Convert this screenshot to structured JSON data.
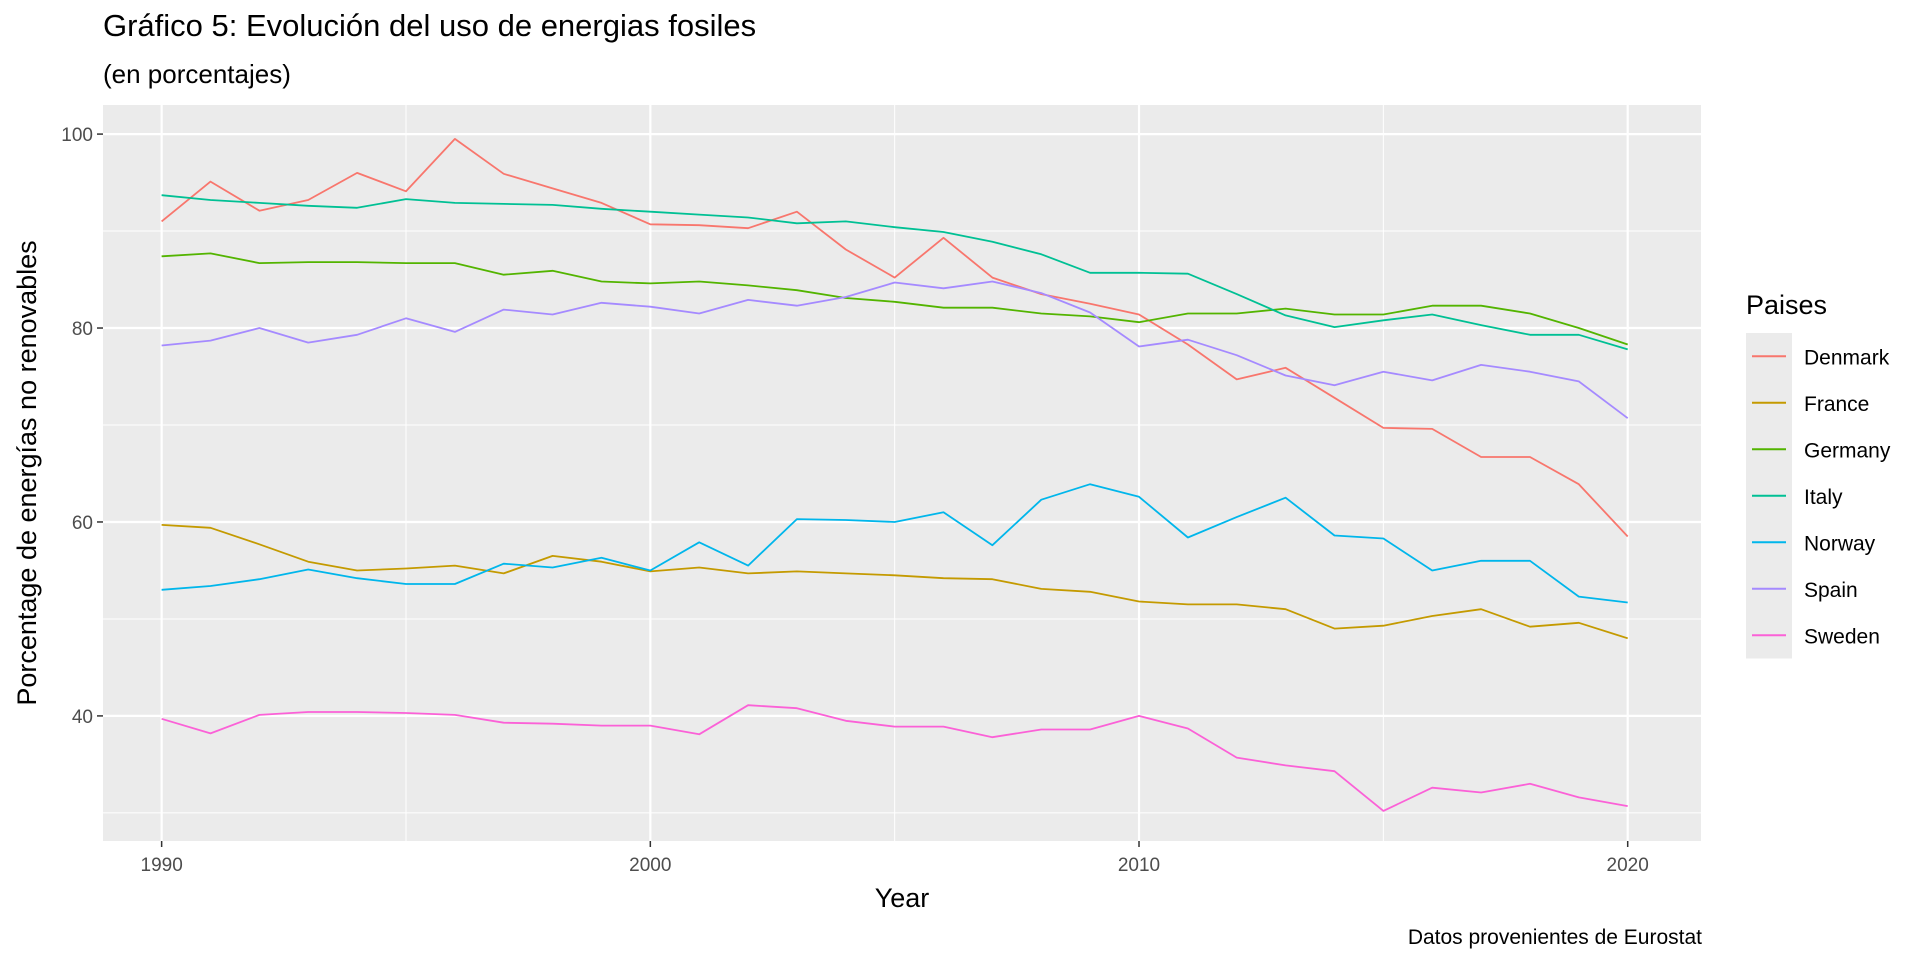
{
  "title": "Gráfico 5: Evolución del uso de energias fosiles",
  "subtitle": "(en porcentajes)",
  "caption": "Datos provenientes de Eurostat",
  "chart_data": {
    "type": "line",
    "xlabel": "Year",
    "ylabel": "Porcentage de energías no renovables",
    "xlim": [
      1988.8,
      2021.5
    ],
    "ylim": [
      27.1,
      103.0
    ],
    "x_ticks": [
      1990,
      2000,
      2010,
      2020
    ],
    "y_ticks": [
      40,
      60,
      80,
      100
    ],
    "grid": true,
    "panel_background": "#EBEBEB",
    "legend": {
      "title": "Paises",
      "position": "right"
    },
    "x": [
      1990,
      1991,
      1992,
      1993,
      1994,
      1995,
      1996,
      1997,
      1998,
      1999,
      2000,
      2001,
      2002,
      2003,
      2004,
      2005,
      2006,
      2007,
      2008,
      2009,
      2010,
      2011,
      2012,
      2013,
      2014,
      2015,
      2016,
      2017,
      2018,
      2019,
      2020
    ],
    "series": [
      {
        "name": "Denmark",
        "color": "#F8766D",
        "values": [
          91.0,
          95.1,
          92.1,
          93.2,
          96.0,
          94.1,
          99.5,
          95.9,
          94.4,
          92.9,
          90.7,
          90.6,
          90.3,
          92.0,
          88.1,
          85.2,
          89.3,
          85.2,
          83.5,
          82.5,
          81.4,
          78.3,
          74.7,
          75.9,
          72.8,
          69.7,
          69.6,
          66.7,
          66.7,
          63.9,
          58.5
        ]
      },
      {
        "name": "France",
        "color": "#C49A00",
        "values": [
          59.7,
          59.4,
          57.7,
          55.9,
          55.0,
          55.2,
          55.5,
          54.7,
          56.5,
          55.9,
          54.9,
          55.3,
          54.7,
          54.9,
          54.7,
          54.5,
          54.2,
          54.1,
          53.1,
          52.8,
          51.8,
          51.5,
          51.5,
          51.0,
          49.0,
          49.3,
          50.3,
          51.0,
          49.2,
          49.6,
          48.0
        ]
      },
      {
        "name": "Germany",
        "color": "#53B400",
        "values": [
          87.4,
          87.7,
          86.7,
          86.8,
          86.8,
          86.7,
          86.7,
          85.5,
          85.9,
          84.8,
          84.6,
          84.8,
          84.4,
          83.9,
          83.1,
          82.7,
          82.1,
          82.1,
          81.5,
          81.2,
          80.6,
          81.5,
          81.5,
          82.0,
          81.4,
          81.4,
          82.3,
          82.3,
          81.5,
          80.0,
          78.3
        ]
      },
      {
        "name": "Italy",
        "color": "#00C094",
        "values": [
          93.7,
          93.2,
          92.9,
          92.6,
          92.4,
          93.3,
          92.9,
          92.8,
          92.7,
          92.3,
          92.0,
          91.7,
          91.4,
          90.8,
          91.0,
          90.4,
          89.9,
          88.9,
          87.6,
          85.7,
          85.7,
          85.6,
          83.5,
          81.3,
          80.1,
          80.8,
          81.4,
          80.3,
          79.3,
          79.3,
          77.8
        ]
      },
      {
        "name": "Norway",
        "color": "#00B6EB",
        "values": [
          53.0,
          53.4,
          54.1,
          55.1,
          54.2,
          53.6,
          53.6,
          55.7,
          55.3,
          56.3,
          55.0,
          57.9,
          55.5,
          60.3,
          60.2,
          60.0,
          61.0,
          57.6,
          62.3,
          63.9,
          62.6,
          58.4,
          60.5,
          62.5,
          58.6,
          58.3,
          55.0,
          56.0,
          56.0,
          52.3,
          51.7
        ]
      },
      {
        "name": "Spain",
        "color": "#A58AFF",
        "values": [
          78.2,
          78.7,
          80.0,
          78.5,
          79.3,
          81.0,
          79.6,
          81.9,
          81.4,
          82.6,
          82.2,
          81.5,
          82.9,
          82.3,
          83.2,
          84.7,
          84.1,
          84.8,
          83.6,
          81.6,
          78.1,
          78.8,
          77.2,
          75.1,
          74.1,
          75.5,
          74.6,
          76.2,
          75.5,
          74.5,
          70.7
        ]
      },
      {
        "name": "Sweden",
        "color": "#FB61D7",
        "values": [
          39.7,
          38.2,
          40.1,
          40.4,
          40.4,
          40.3,
          40.1,
          39.3,
          39.2,
          39.0,
          39.0,
          38.1,
          41.1,
          40.8,
          39.5,
          38.9,
          38.9,
          37.8,
          38.6,
          38.6,
          40.0,
          38.7,
          35.7,
          34.9,
          34.3,
          30.2,
          32.6,
          32.1,
          33.0,
          31.6,
          30.7
        ]
      }
    ]
  }
}
